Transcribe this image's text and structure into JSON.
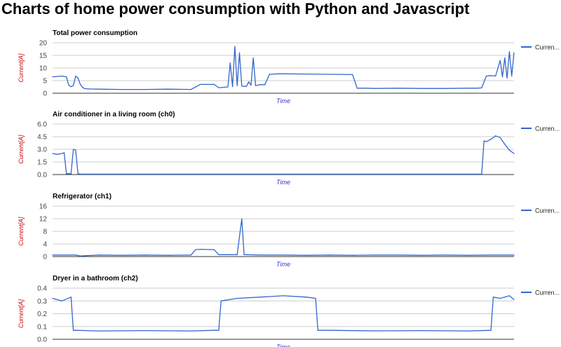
{
  "page": {
    "title": "Charts of home power consumption with Python and Javascript"
  },
  "colors": {
    "series": "#3366cc",
    "ylabel": "#cc0000",
    "xlabel": "#3333cc",
    "grid": "#cccccc",
    "axis": "#333333",
    "ticklabel": "#444444"
  },
  "chart_data": [
    {
      "type": "line",
      "title": "Total power consumption",
      "xlabel": "Time",
      "ylabel": "Current[A]",
      "ylim": [
        0,
        20
      ],
      "yticks": [
        0,
        5,
        10,
        15,
        20
      ],
      "ytick_labels": [
        "0",
        "5",
        "10",
        "15",
        "20"
      ],
      "grid": true,
      "legend": "right",
      "series": [
        {
          "name": "Curren...",
          "x": [
            0,
            0.02,
            0.03,
            0.035,
            0.04,
            0.045,
            0.05,
            0.055,
            0.06,
            0.065,
            0.07,
            0.08,
            0.1,
            0.15,
            0.2,
            0.25,
            0.3,
            0.32,
            0.35,
            0.36,
            0.38,
            0.385,
            0.39,
            0.395,
            0.4,
            0.405,
            0.41,
            0.42,
            0.425,
            0.43,
            0.435,
            0.44,
            0.45,
            0.46,
            0.47,
            0.48,
            0.49,
            0.5,
            0.55,
            0.6,
            0.65,
            0.66,
            0.68,
            0.7,
            0.75,
            0.8,
            0.85,
            0.9,
            0.92,
            0.93,
            0.94,
            0.95,
            0.96,
            0.97,
            0.975,
            0.98,
            0.985,
            0.99,
            0.995,
            1.0
          ],
          "y": [
            6.5,
            6.8,
            6.5,
            3.2,
            2.6,
            3.0,
            6.8,
            6.0,
            3.5,
            2.3,
            1.8,
            1.7,
            1.6,
            1.5,
            1.5,
            1.6,
            1.5,
            3.5,
            3.5,
            2.2,
            2.5,
            12.0,
            2.6,
            18.5,
            3.0,
            16.0,
            2.8,
            2.7,
            4.5,
            3.2,
            14.0,
            3.0,
            3.4,
            3.4,
            7.5,
            7.6,
            7.7,
            7.7,
            7.6,
            7.5,
            7.4,
            2.0,
            2.0,
            1.9,
            2.0,
            1.9,
            1.9,
            2.0,
            2.0,
            2.1,
            6.8,
            7.0,
            6.8,
            13.0,
            6.5,
            14.0,
            6.0,
            16.5,
            6.8,
            16.0
          ]
        }
      ]
    },
    {
      "type": "line",
      "title": "Air conditioner in a living room (ch0)",
      "xlabel": "Time",
      "ylabel": "Current[A]",
      "ylim": [
        0,
        6
      ],
      "yticks": [
        0,
        1.5,
        3,
        4.5,
        6
      ],
      "ytick_labels": [
        "0.0",
        "1.5",
        "3.0",
        "4.5",
        "6.0"
      ],
      "grid": true,
      "legend": "right",
      "series": [
        {
          "name": "Curren...",
          "x": [
            0,
            0.01,
            0.02,
            0.025,
            0.03,
            0.035,
            0.04,
            0.045,
            0.05,
            0.055,
            0.06,
            0.1,
            0.3,
            0.5,
            0.7,
            0.9,
            0.93,
            0.935,
            0.94,
            0.95,
            0.96,
            0.97,
            0.98,
            0.99,
            1.0
          ],
          "y": [
            2.5,
            2.4,
            2.5,
            2.6,
            0.1,
            0.1,
            0.1,
            3.0,
            2.9,
            0.1,
            0.05,
            0.05,
            0.05,
            0.05,
            0.05,
            0.05,
            0.05,
            4.0,
            3.9,
            4.2,
            4.6,
            4.4,
            3.6,
            2.9,
            2.5
          ]
        }
      ]
    },
    {
      "type": "line",
      "title": "Refrigerator (ch1)",
      "xlabel": "Time",
      "ylabel": "Current[A]",
      "ylim": [
        0,
        16
      ],
      "yticks": [
        0,
        4,
        8,
        12,
        16
      ],
      "ytick_labels": [
        "0",
        "4",
        "8",
        "12",
        "16"
      ],
      "grid": true,
      "legend": "right",
      "series": [
        {
          "name": "Curren...",
          "x": [
            0,
            0.05,
            0.06,
            0.1,
            0.15,
            0.2,
            0.25,
            0.3,
            0.31,
            0.32,
            0.35,
            0.36,
            0.4,
            0.41,
            0.415,
            0.42,
            0.45,
            0.5,
            0.55,
            0.6,
            0.65,
            0.7,
            0.75,
            0.8,
            0.85,
            0.9,
            0.95,
            1.0
          ],
          "y": [
            0.5,
            0.5,
            0.2,
            0.5,
            0.4,
            0.5,
            0.4,
            0.5,
            2.2,
            2.3,
            2.2,
            0.6,
            0.6,
            12.0,
            0.6,
            0.6,
            0.5,
            0.5,
            0.4,
            0.5,
            0.4,
            0.5,
            0.5,
            0.4,
            0.5,
            0.4,
            0.5,
            0.5
          ]
        }
      ]
    },
    {
      "type": "line",
      "title": "Dryer in a bathroom (ch2)",
      "xlabel": "Time",
      "ylabel": "Current[A]",
      "ylim": [
        0,
        0.4
      ],
      "yticks": [
        0,
        0.1,
        0.2,
        0.3,
        0.4
      ],
      "ytick_labels": [
        "0.0",
        "0.1",
        "0.2",
        "0.3",
        "0.4"
      ],
      "grid": true,
      "legend": "right",
      "series": [
        {
          "name": "Curren...",
          "x": [
            0,
            0.02,
            0.04,
            0.045,
            0.05,
            0.1,
            0.2,
            0.3,
            0.35,
            0.36,
            0.365,
            0.4,
            0.45,
            0.5,
            0.55,
            0.57,
            0.575,
            0.6,
            0.7,
            0.8,
            0.9,
            0.95,
            0.955,
            0.97,
            0.99,
            1.0
          ],
          "y": [
            0.32,
            0.3,
            0.33,
            0.07,
            0.07,
            0.065,
            0.068,
            0.065,
            0.07,
            0.07,
            0.3,
            0.32,
            0.33,
            0.34,
            0.33,
            0.32,
            0.07,
            0.07,
            0.066,
            0.068,
            0.065,
            0.07,
            0.33,
            0.32,
            0.34,
            0.31
          ]
        }
      ]
    }
  ]
}
